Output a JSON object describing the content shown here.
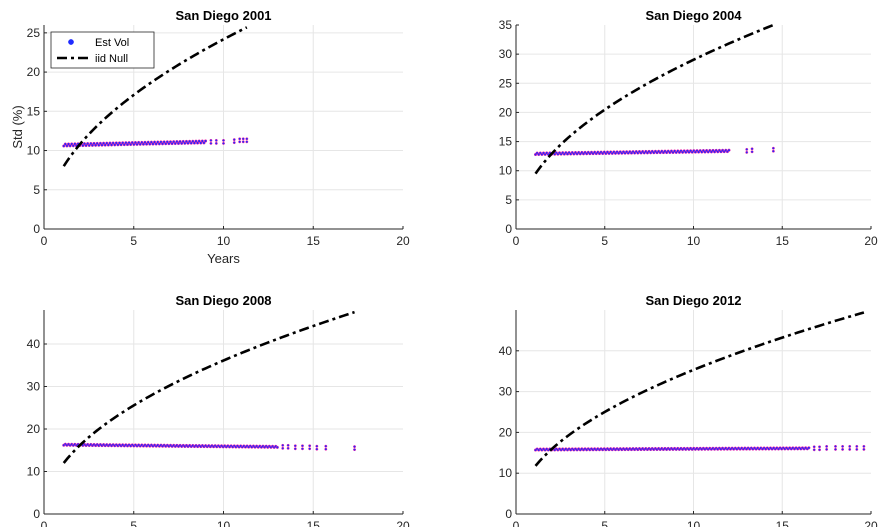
{
  "figure": {
    "background": "#ffffff"
  },
  "colors": {
    "est_vol_fill": "#1f2bff",
    "est_vol_edge": "#ff1fa0",
    "iid_null": "#000000",
    "grid": "#e6e6e6",
    "axis": "#262626"
  },
  "chart_data": [
    {
      "type": "scatter",
      "title": "San Diego 2001",
      "xlabel": "Years",
      "ylabel": "Std (%)",
      "xlim": [
        0,
        20
      ],
      "ylim": [
        0,
        26
      ],
      "xticks": [
        0,
        5,
        10,
        15,
        20
      ],
      "yticks": [
        0,
        5,
        10,
        15,
        20,
        25
      ],
      "grid": true,
      "legend": {
        "placement": "top-left",
        "entries": [
          "Est Vol",
          "iid Null"
        ]
      },
      "series": [
        {
          "name": "Est Vol",
          "kind": "scatter",
          "x_start": 1.1,
          "x_end": 9.0,
          "y_start": 10.7,
          "y_end": 11.1,
          "extra_x": [
            9.3,
            9.6,
            10.0,
            10.6,
            10.9,
            11.1,
            11.3
          ],
          "extra_y": [
            11.1,
            11.1,
            11.1,
            11.2,
            11.3,
            11.3,
            11.3
          ]
        },
        {
          "name": "iid Null",
          "kind": "line",
          "style": "dashdot",
          "x": [
            1.1,
            11.3
          ],
          "y": [
            8.0,
            25.7
          ]
        }
      ]
    },
    {
      "type": "scatter",
      "title": "San Diego 2004",
      "xlabel": "",
      "ylabel": "",
      "xlim": [
        0,
        20
      ],
      "ylim": [
        0,
        35
      ],
      "xticks": [
        0,
        5,
        10,
        15,
        20
      ],
      "yticks": [
        0,
        5,
        10,
        15,
        20,
        25,
        30,
        35
      ],
      "grid": true,
      "series": [
        {
          "name": "Est Vol",
          "kind": "scatter",
          "x_start": 1.1,
          "x_end": 12.0,
          "y_start": 12.9,
          "y_end": 13.4,
          "extra_x": [
            13.0,
            13.3,
            14.5
          ],
          "extra_y": [
            13.4,
            13.5,
            13.6
          ]
        },
        {
          "name": "iid Null",
          "kind": "line",
          "style": "dashdot",
          "x": [
            1.1,
            14.5
          ],
          "y": [
            9.5,
            35.0
          ]
        }
      ]
    },
    {
      "type": "scatter",
      "title": "San Diego 2008",
      "xlabel": "",
      "ylabel": "",
      "xlim": [
        0,
        20
      ],
      "ylim": [
        0,
        48
      ],
      "xticks": [
        0,
        5,
        10,
        15,
        20
      ],
      "yticks": [
        0,
        10,
        20,
        30,
        40
      ],
      "grid": true,
      "series": [
        {
          "name": "Est Vol",
          "kind": "scatter",
          "x_start": 1.1,
          "x_end": 13.0,
          "y_start": 16.3,
          "y_end": 15.8,
          "extra_x": [
            13.3,
            13.6,
            14.0,
            14.4,
            14.8,
            15.2,
            15.7,
            17.3
          ],
          "extra_y": [
            15.8,
            15.8,
            15.7,
            15.7,
            15.7,
            15.6,
            15.6,
            15.5
          ]
        },
        {
          "name": "iid Null",
          "kind": "line",
          "style": "dashdot",
          "x": [
            1.1,
            17.3
          ],
          "y": [
            12.0,
            47.5
          ]
        }
      ]
    },
    {
      "type": "scatter",
      "title": "San Diego 2012",
      "xlabel": "",
      "ylabel": "",
      "xlim": [
        0,
        20
      ],
      "ylim": [
        0,
        50
      ],
      "xticks": [
        0,
        5,
        10,
        15,
        20
      ],
      "yticks": [
        0,
        10,
        20,
        30,
        40
      ],
      "grid": true,
      "series": [
        {
          "name": "Est Vol",
          "kind": "scatter",
          "x_start": 1.1,
          "x_end": 16.5,
          "y_start": 15.8,
          "y_end": 16.1,
          "extra_x": [
            16.8,
            17.1,
            17.5,
            18.0,
            18.4,
            18.8,
            19.2,
            19.6
          ],
          "extra_y": [
            16.1,
            16.1,
            16.2,
            16.2,
            16.2,
            16.2,
            16.2,
            16.2
          ]
        },
        {
          "name": "iid Null",
          "kind": "line",
          "style": "dashdot",
          "x": [
            1.1,
            19.6
          ],
          "y": [
            11.8,
            49.4
          ]
        }
      ]
    }
  ]
}
